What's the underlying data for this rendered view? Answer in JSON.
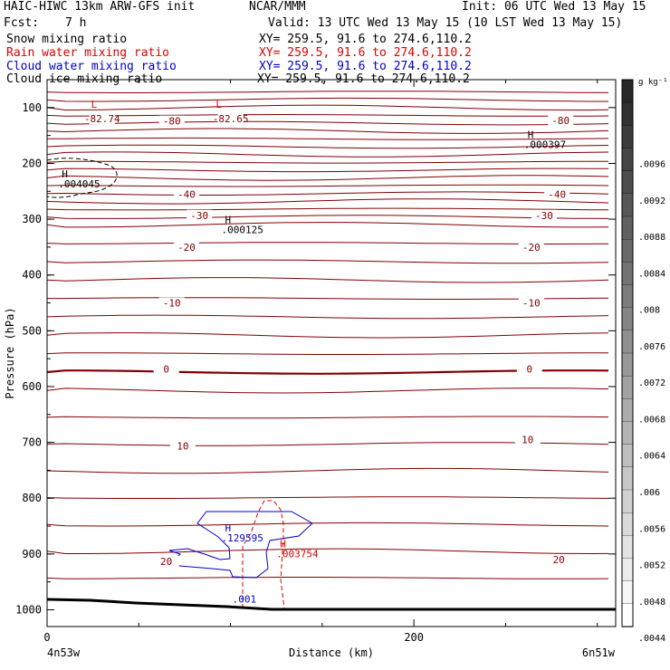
{
  "header": {
    "model": "HAIC-HIWC 13km ARW-GFS init",
    "org": "NCAR/MMM",
    "init": "Init: 06 UTC Wed 13 May 15",
    "fcst_label": "Fcst:",
    "fcst_value": "7 h",
    "valid": "Valid: 13 UTC Wed 13 May 15 (10 LST Wed 13 May 15)",
    "fields": [
      {
        "name": "Snow mixing ratio",
        "xy": "XY= 259.5, 91.6 to 274.6,110.2",
        "color": "#000000"
      },
      {
        "name": "Rain water mixing ratio",
        "xy": "XY= 259.5, 91.6 to 274.6,110.2",
        "color": "#e00000"
      },
      {
        "name": "Cloud water mixing ratio",
        "xy": "XY= 259.5, 91.6 to 274.6,110.2",
        "color": "#0000cc"
      },
      {
        "name": "Cloud ice mixing ratio",
        "xy": "XY= 259.5, 91.6 to 274.6,110.2",
        "color": "#000000"
      }
    ]
  },
  "chart_data": {
    "type": "cross-section",
    "xlabel": "Distance (km)",
    "ylabel": "Pressure (hPa)",
    "x_ticks": [
      "0",
      "200"
    ],
    "x_range": [
      0,
      310
    ],
    "y_ticks": [
      "100",
      "200",
      "300",
      "400",
      "500",
      "600",
      "700",
      "800",
      "900",
      "1000"
    ],
    "y_range": [
      50,
      1030
    ],
    "left_endpoint": "4n53w",
    "right_endpoint": "6n51w",
    "temperature_contour_color": "#800000",
    "temperature_labels": [
      {
        "text": "-80",
        "x": 68,
        "p": 124
      },
      {
        "text": "-80",
        "x": 280,
        "p": 123
      },
      {
        "text": "-82.74",
        "x": 30,
        "p": 120
      },
      {
        "text": "-82.65",
        "x": 100,
        "p": 120
      },
      {
        "text": "-40",
        "x": 76,
        "p": 255
      },
      {
        "text": "-40",
        "x": 278,
        "p": 255
      },
      {
        "text": "-30",
        "x": 83,
        "p": 293
      },
      {
        "text": "-30",
        "x": 271,
        "p": 293
      },
      {
        "text": "-20",
        "x": 76,
        "p": 350
      },
      {
        "text": "-20",
        "x": 264,
        "p": 350
      },
      {
        "text": "-10",
        "x": 68,
        "p": 450
      },
      {
        "text": "-10",
        "x": 264,
        "p": 450
      },
      {
        "text": "0",
        "x": 65,
        "p": 568
      },
      {
        "text": "0",
        "x": 263,
        "p": 568
      },
      {
        "text": "10",
        "x": 74,
        "p": 706
      },
      {
        "text": "10",
        "x": 262,
        "p": 695
      },
      {
        "text": "20",
        "x": 65,
        "p": 913
      },
      {
        "text": "20",
        "x": 279,
        "p": 910
      }
    ],
    "extrema_labels": [
      {
        "kind": "L",
        "value": "",
        "x": 24,
        "p": 100,
        "color": "#e00000"
      },
      {
        "kind": "L",
        "value": "",
        "x": 92,
        "p": 100,
        "color": "#e00000"
      },
      {
        "kind": "H",
        "value": ".000397",
        "x": 262,
        "p": 155,
        "color": "#000000"
      },
      {
        "kind": "H",
        "value": ".004045",
        "x": 8,
        "p": 225,
        "color": "#000000"
      },
      {
        "kind": "H",
        "value": ".000125",
        "x": 97,
        "p": 307,
        "color": "#000000"
      },
      {
        "kind": "H",
        "value": ".129595",
        "x": 97,
        "p": 860,
        "color": "#0000cc"
      },
      {
        "kind": "H",
        "value": ".003754",
        "x": 127,
        "p": 888,
        "color": "#e00000"
      },
      {
        "kind": "",
        "value": ".001",
        "x": 103,
        "p": 969,
        "color": "#0000cc"
      }
    ],
    "colorbar": {
      "unit": "g kg⁻¹",
      "ticks": [
        ".0096",
        ".0092",
        ".0088",
        ".0084",
        ".008",
        ".0076",
        ".0072",
        ".0068",
        ".0064",
        ".006",
        ".0056",
        ".0052",
        ".0048",
        ".0044"
      ],
      "levels": 24
    }
  }
}
